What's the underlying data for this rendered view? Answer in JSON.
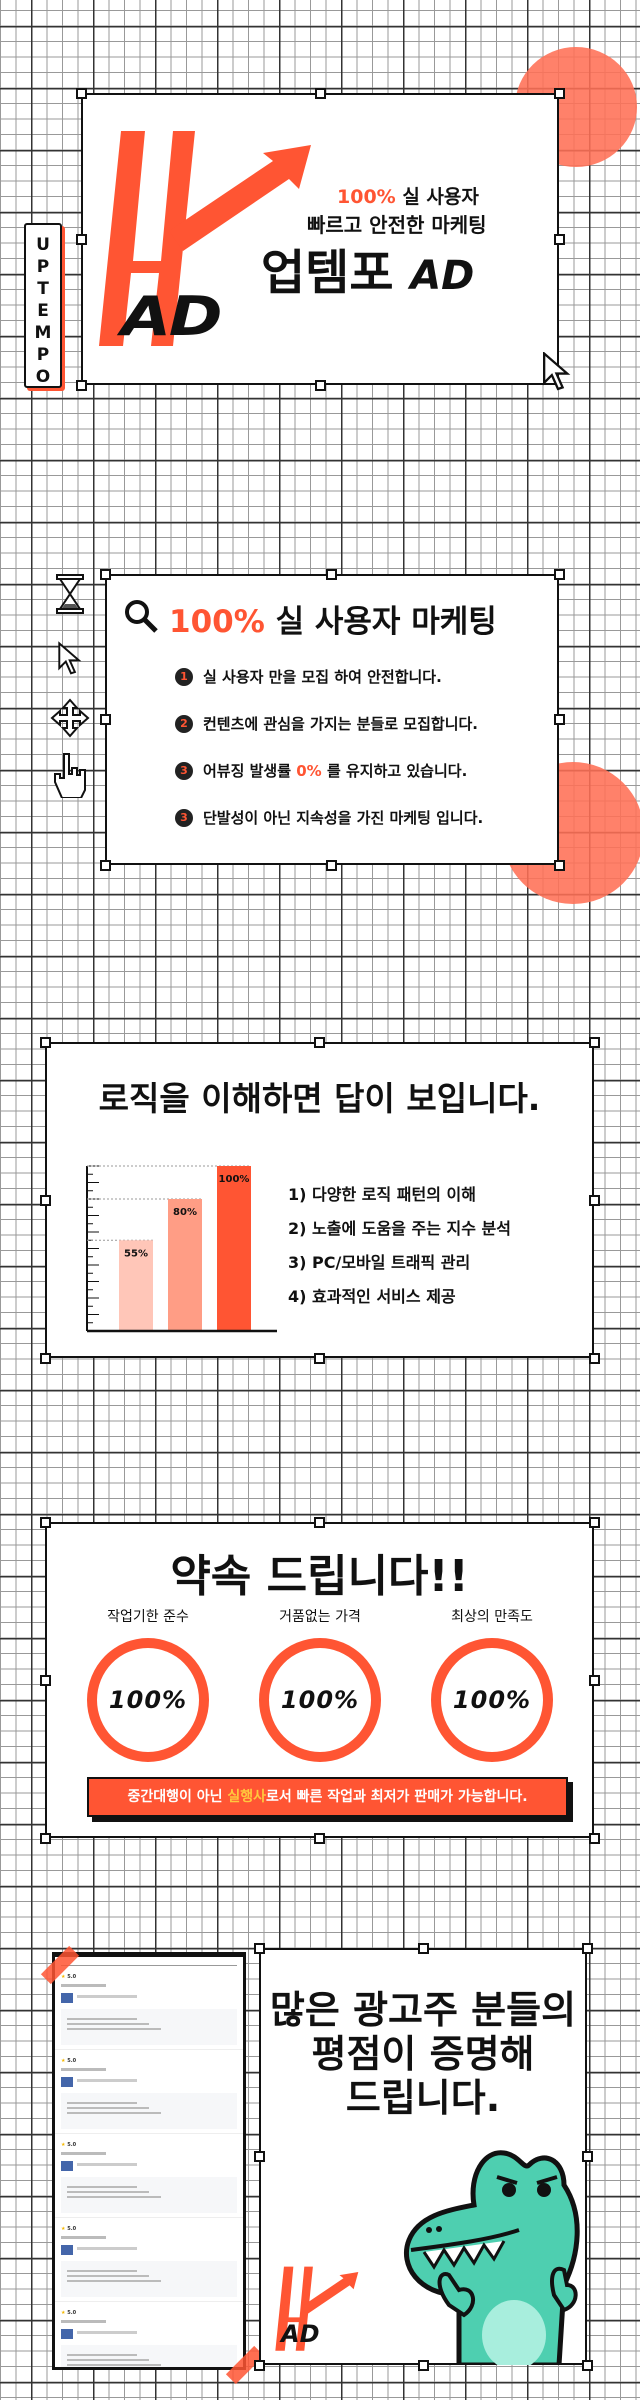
{
  "colors": {
    "accent": "#ff5533",
    "ink": "#111111",
    "mascot": "#4ecfb0",
    "highlight": "#ffc83d"
  },
  "hero": {
    "vertical_tag": "UPTEMPO",
    "logo_text": "AD",
    "tag_line_accent": "100%",
    "tag_line_rest": " 실 사용자",
    "subtitle": "빠르고 안전한 마케팅",
    "brand_name": "업템포",
    "brand_suffix": "AD"
  },
  "features": {
    "title_accent": "100%",
    "title_rest": " 실 사용자 마케팅",
    "side_icons": [
      "hourglass-icon",
      "arrow-cursor-icon",
      "move-icon",
      "hand-pointer-icon"
    ],
    "items": [
      {
        "num": "1",
        "text": "실 사용자 만을 모집 하여 안전합니다."
      },
      {
        "num": "2",
        "text": "컨텐츠에 관심을 가지는 분들로 모집합니다."
      },
      {
        "num": "3",
        "pre": "어뷰징 발생률 ",
        "accent": "0%",
        "post": " 를 유지하고 있습니다."
      },
      {
        "num": "3",
        "text": "단발성이 아닌 지속성을 가진 마케팅 입니다."
      }
    ]
  },
  "logic": {
    "title": "로직을 이해하면 답이 보입니다.",
    "list": [
      "1) 다양한 로직 패턴의 이해",
      "2) 노출에 도움을 주는 지수 분석",
      "3) PC/모바일 트래픽 관리",
      "4) 효과적인 서비스 제공"
    ]
  },
  "chart_data": {
    "type": "bar",
    "categories": [
      "",
      "",
      ""
    ],
    "values": [
      55,
      80,
      100
    ],
    "labels": [
      "55%",
      "80%",
      "100%"
    ],
    "colors": [
      "#ffc6b8",
      "#ff9d85",
      "#ff5533"
    ],
    "ylim": [
      0,
      100
    ],
    "grid": false
  },
  "promise": {
    "title": "약속 드립니다!!",
    "items": [
      {
        "label": "작업기한 준수",
        "value": "100%"
      },
      {
        "label": "거품없는 가격",
        "value": "100%"
      },
      {
        "label": "최상의 만족도",
        "value": "100%"
      }
    ],
    "banner_pre": "중간대행이 아닌 ",
    "banner_accent": "실행사",
    "banner_post": "로서 빠른 작업과 최저가 판매가 가능합니다."
  },
  "reviews": {
    "title_lines": [
      "많은 광고주 분들의",
      "평점이 증명해",
      "드립니다."
    ],
    "ratings": [
      "5.0",
      "5.0",
      "5.0",
      "5.0",
      "5.0"
    ],
    "logo_text": "AD"
  }
}
